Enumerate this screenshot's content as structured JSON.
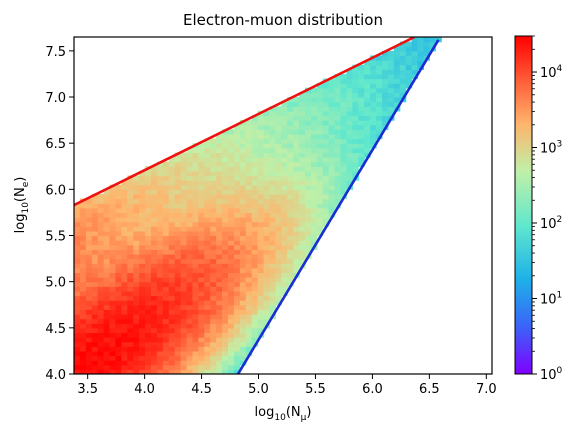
{
  "chart_data": {
    "type": "heatmap",
    "title": "Electron-muon distribution",
    "xlabel": "log10(Nμ)",
    "ylabel": "log10(Ne)",
    "xlim": [
      3.38,
      7.05
    ],
    "ylim": [
      4.0,
      7.65
    ],
    "xticks": [
      "3.5",
      "4.0",
      "4.5",
      "5.0",
      "5.5",
      "6.0",
      "6.5",
      "7.0"
    ],
    "yticks": [
      "4.0",
      "4.5",
      "5.0",
      "5.5",
      "6.0",
      "6.5",
      "7.0",
      "7.5"
    ],
    "grid": false,
    "colorscale": {
      "type": "log",
      "min": 1,
      "max": 30000,
      "colors": [
        "#7f00ff",
        "#3b63f8",
        "#1db1e8",
        "#60e8cd",
        "#c0f0a8",
        "#ffb46c",
        "#ff5533",
        "#ff0000"
      ],
      "tick_values": [
        1,
        10,
        100,
        1000,
        10000
      ],
      "tick_labels": [
        "10^0",
        "10^1",
        "10^2",
        "10^3",
        "10^4"
      ]
    },
    "lines": [
      {
        "name": "",
        "color": "#ee1111",
        "x": [
          3.38,
          6.37
        ],
        "y": [
          5.83,
          7.65
        ]
      },
      {
        "name": "",
        "color": "#1a2bd6",
        "x": [
          4.82,
          6.58
        ],
        "y": [
          4.0,
          7.62
        ]
      }
    ]
  }
}
